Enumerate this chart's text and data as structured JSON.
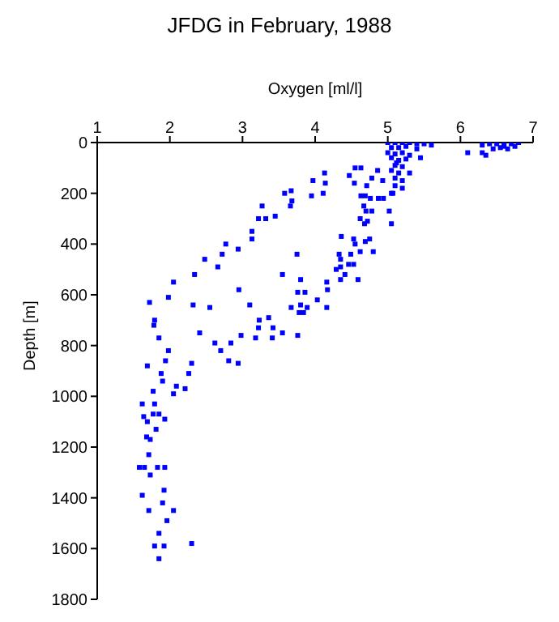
{
  "chart_data": {
    "type": "scatter",
    "title": "JFDG in February, 1988",
    "xlabel": "Oxygen [ml/l]",
    "ylabel": "Depth [m]",
    "xlim": [
      1,
      7
    ],
    "xticks": [
      1,
      2,
      3,
      4,
      5,
      6,
      7
    ],
    "ylim": [
      1800,
      0
    ],
    "yticks": [
      0,
      200,
      400,
      600,
      800,
      1000,
      1200,
      1400,
      1600,
      1800
    ],
    "grid": false,
    "legend": false,
    "marker": "square",
    "series": [
      {
        "color": "#0000ff",
        "x": [
          5.0,
          5.1,
          5.2,
          5.3,
          5.4,
          5.5,
          5.6,
          5.05,
          5.15,
          5.25,
          5.4,
          5.0,
          5.1,
          5.2,
          5.3,
          5.05,
          5.15,
          5.25,
          5.1,
          5.2,
          5.05,
          5.15,
          5.3,
          5.1,
          5.2,
          5.1,
          5.2,
          5.05,
          5.12,
          5.45,
          6.3,
          6.4,
          6.5,
          6.6,
          6.7,
          6.8,
          6.45,
          6.55,
          6.65,
          6.75,
          6.1,
          6.35,
          6.3,
          6.6,
          4.13,
          3.97,
          4.14,
          4.11,
          3.95,
          3.67,
          3.58,
          3.68,
          3.66,
          3.27,
          3.45,
          3.22,
          3.32,
          3.13,
          3.13,
          2.77,
          2.94,
          2.72,
          2.48,
          2.66,
          3.75,
          2.34,
          3.55,
          3.8,
          2.05,
          2.95,
          3.76,
          3.86,
          1.98,
          1.72,
          2.32,
          2.55,
          3.1,
          4.03,
          3.67,
          3.8,
          3.89,
          4.16,
          3.78,
          3.84,
          1.79,
          3.23,
          3.36,
          3.22,
          3.42,
          4.55,
          4.63,
          4.47,
          4.86,
          4.78,
          4.54,
          4.71,
          4.93,
          4.63,
          4.69,
          4.76,
          4.87,
          4.94,
          5.07,
          4.67,
          4.7,
          4.78,
          5.02,
          4.62,
          4.68,
          4.72,
          5.05,
          4.36,
          4.53,
          4.55,
          4.69,
          4.75,
          4.62,
          4.8,
          4.33,
          4.35,
          4.49,
          4.46,
          4.29,
          4.35,
          4.53,
          4.41,
          4.59,
          4.35,
          4.16,
          4.17,
          1.78,
          1.85,
          2.41,
          2.62,
          2.84,
          2.98,
          3.18,
          3.41,
          3.55,
          3.76,
          2.7,
          2.81,
          2.94,
          1.98,
          1.94,
          1.69,
          1.88,
          2.3,
          2.26,
          1.9,
          2.09,
          2.21,
          1.77,
          2.05,
          1.62,
          1.79,
          1.64,
          1.77,
          1.85,
          1.93,
          1.69,
          1.81,
          1.68,
          1.73,
          1.71,
          1.58,
          1.65,
          1.83,
          1.93,
          1.73,
          1.62,
          1.92,
          1.9,
          1.71,
          2.05,
          1.96,
          1.85,
          1.79,
          1.92,
          2.3,
          1.85
        ],
        "values": [
          0,
          0,
          0,
          0,
          5,
          5,
          10,
          20,
          20,
          15,
          25,
          40,
          45,
          40,
          50,
          60,
          70,
          65,
          90,
          95,
          110,
          120,
          120,
          140,
          150,
          170,
          180,
          200,
          80,
          60,
          10,
          5,
          5,
          10,
          5,
          0,
          25,
          20,
          25,
          15,
          40,
          50,
          40,
          15,
          120,
          150,
          160,
          200,
          210,
          190,
          200,
          230,
          250,
          250,
          290,
          300,
          300,
          350,
          380,
          400,
          420,
          440,
          460,
          490,
          440,
          520,
          520,
          540,
          550,
          580,
          590,
          590,
          610,
          630,
          640,
          650,
          640,
          620,
          650,
          640,
          650,
          650,
          670,
          670,
          700,
          700,
          690,
          730,
          730,
          100,
          100,
          130,
          110,
          140,
          160,
          170,
          150,
          210,
          210,
          220,
          220,
          220,
          200,
          250,
          270,
          270,
          270,
          300,
          320,
          310,
          320,
          370,
          380,
          400,
          390,
          380,
          430,
          430,
          440,
          460,
          440,
          480,
          500,
          490,
          480,
          520,
          540,
          540,
          550,
          580,
          720,
          770,
          750,
          790,
          790,
          760,
          770,
          770,
          750,
          760,
          820,
          860,
          870,
          820,
          860,
          880,
          910,
          870,
          910,
          940,
          960,
          970,
          980,
          990,
          1030,
          1030,
          1080,
          1070,
          1070,
          1090,
          1100,
          1130,
          1160,
          1170,
          1230,
          1280,
          1280,
          1280,
          1280,
          1310,
          1390,
          1370,
          1420,
          1450,
          1450,
          1490,
          1540,
          1590,
          1590,
          1580,
          1640
        ]
      }
    ]
  }
}
